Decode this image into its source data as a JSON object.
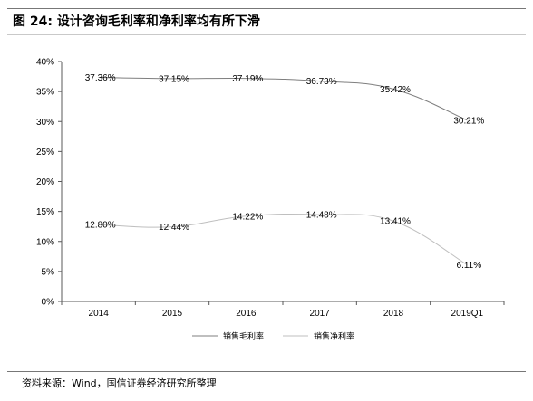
{
  "figure": {
    "title": "图 24:  设计咨询毛利率和净利率均有所下滑",
    "source": "资料来源：Wind，国信证券经济研究所整理"
  },
  "chart_data": {
    "type": "line",
    "categories": [
      "2014",
      "2015",
      "2016",
      "2017",
      "2018",
      "2019Q1"
    ],
    "ylim": [
      0,
      40
    ],
    "y_ticks": [
      "0%",
      "5%",
      "10%",
      "15%",
      "20%",
      "25%",
      "30%",
      "35%",
      "40%"
    ],
    "grid": false,
    "legend_position": "bottom",
    "series": [
      {
        "name": "销售毛利率",
        "values": [
          37.36,
          37.15,
          37.19,
          36.73,
          35.42,
          30.21
        ],
        "labels": [
          "37.36%",
          "37.15%",
          "37.19%",
          "36.73%",
          "35.42%",
          "30.21%"
        ],
        "color": "#7f7f7f"
      },
      {
        "name": "销售净利率",
        "values": [
          12.8,
          12.44,
          14.22,
          14.48,
          13.41,
          6.11
        ],
        "labels": [
          "12.80%",
          "12.44%",
          "14.22%",
          "14.48%",
          "13.41%",
          "6.11%"
        ],
        "color": "#bfbfbf"
      }
    ]
  }
}
